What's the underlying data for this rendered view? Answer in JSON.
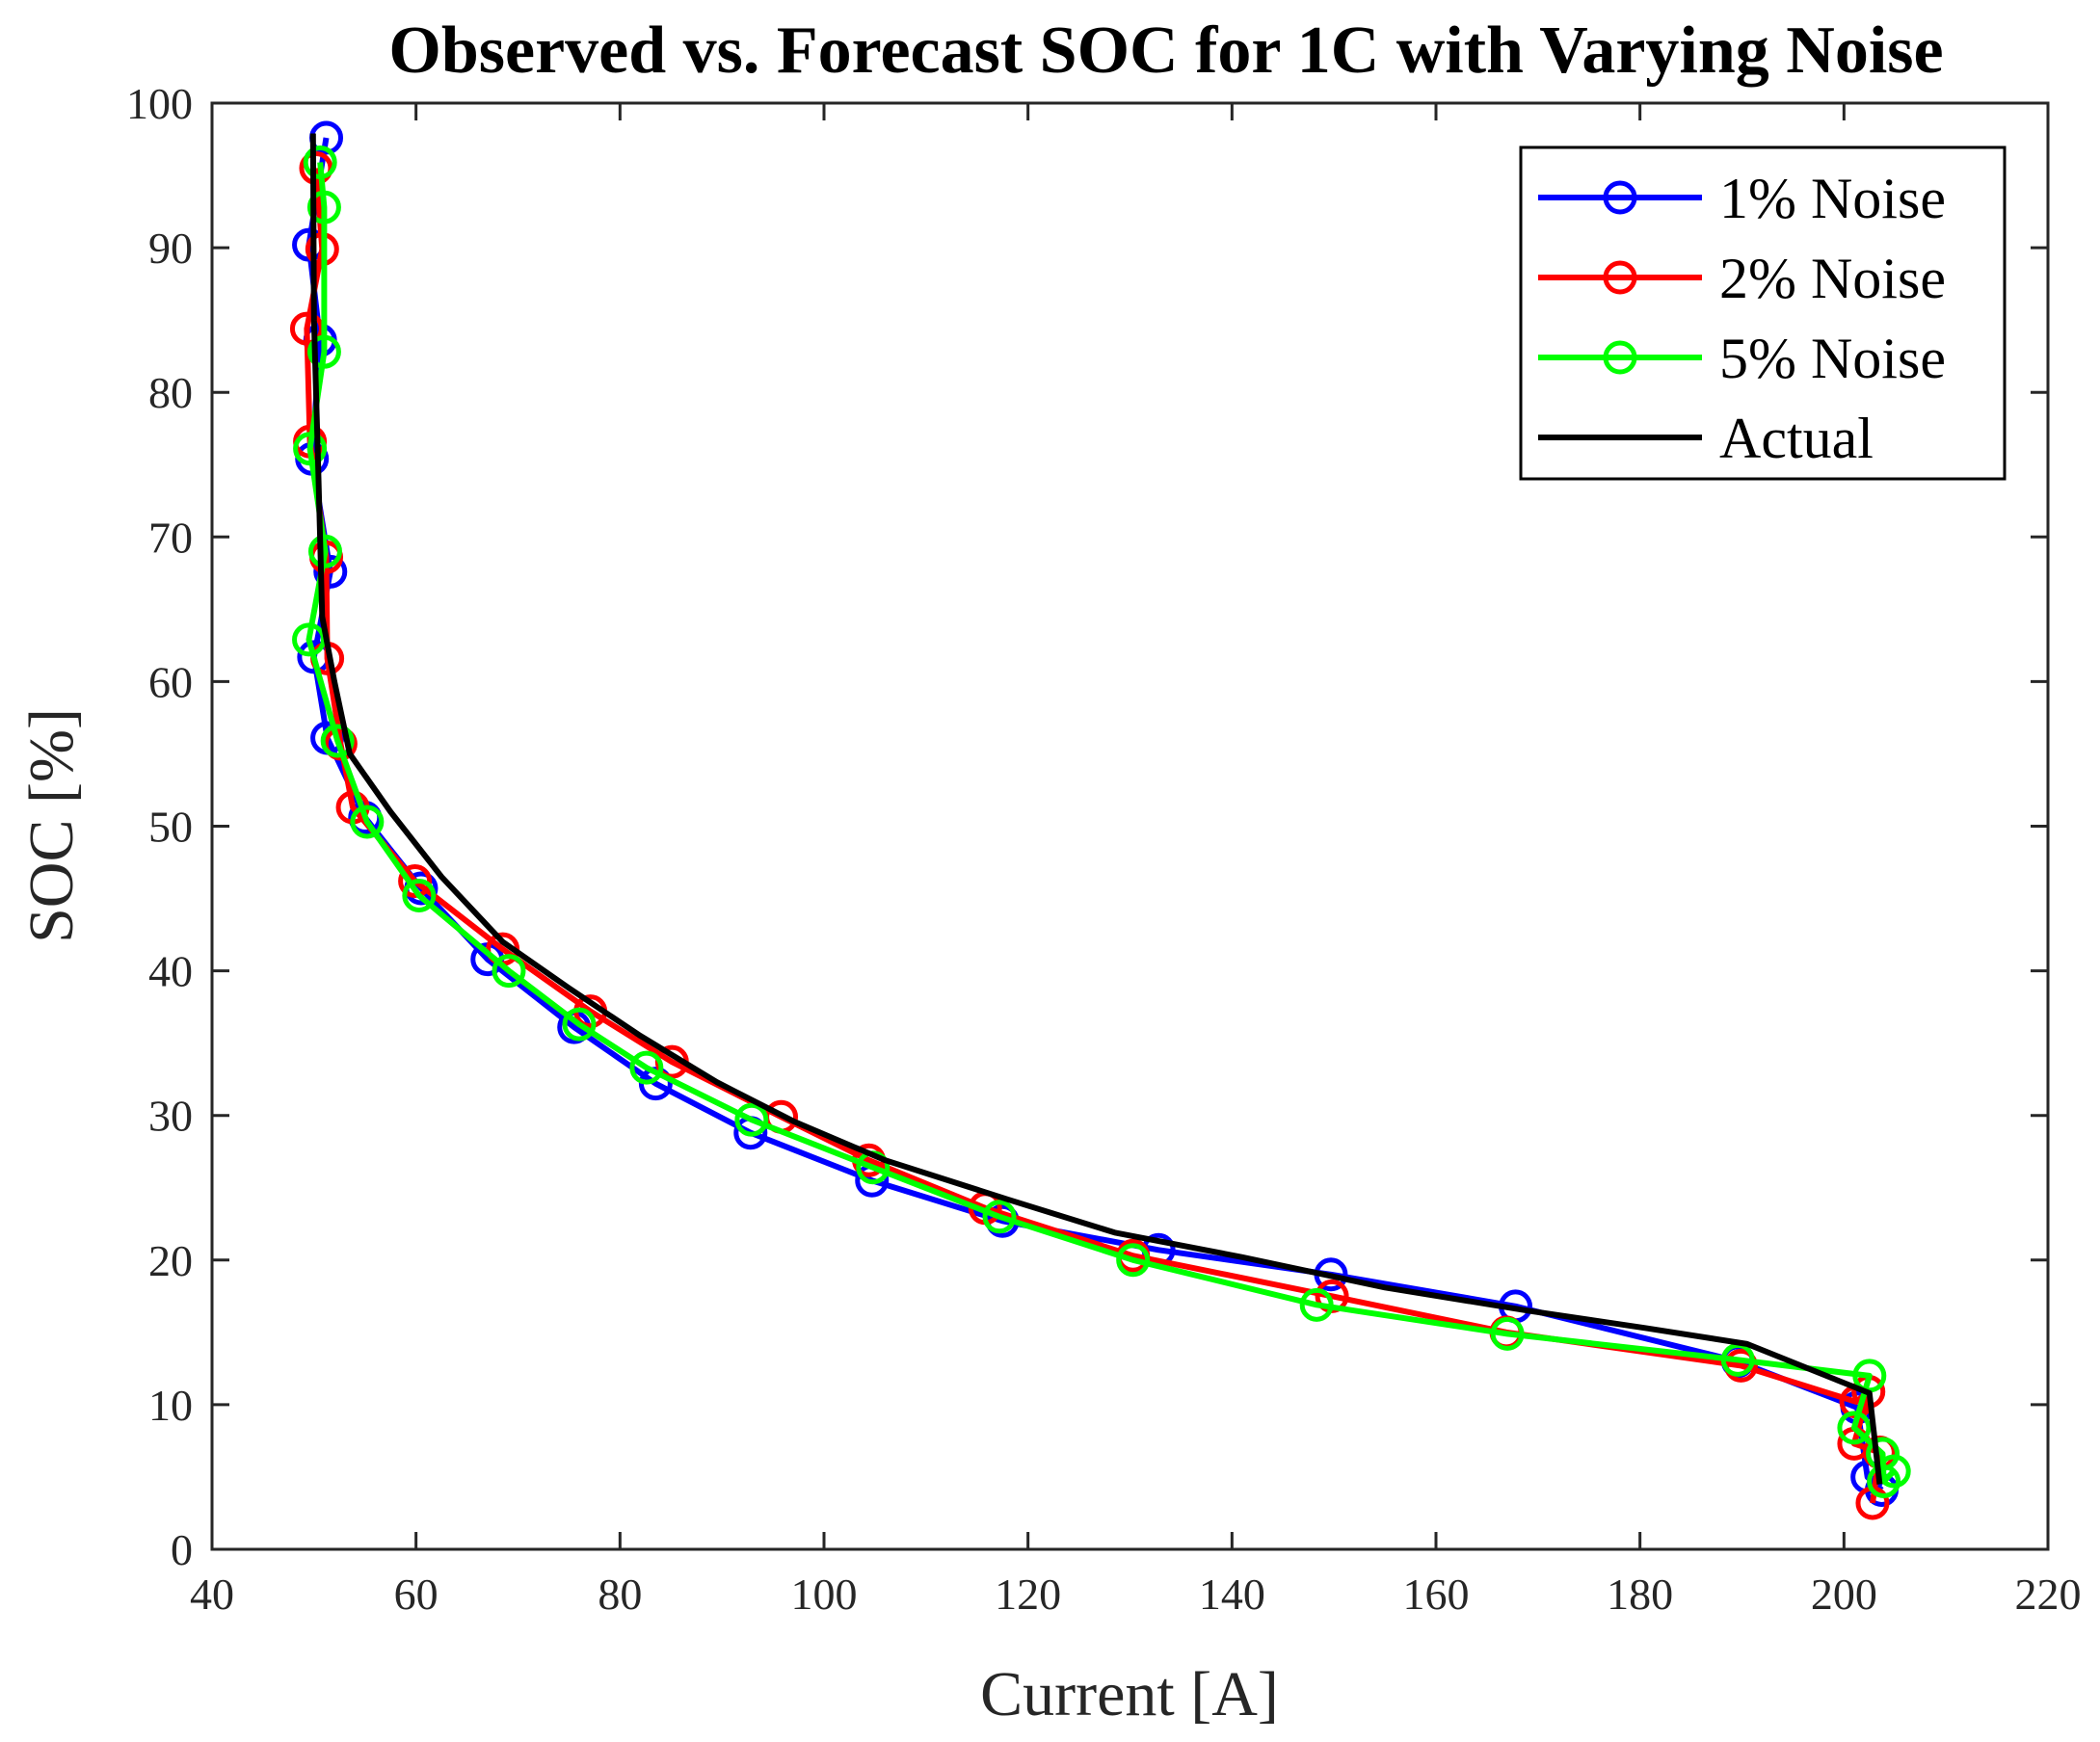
{
  "chart_data": {
    "type": "line",
    "title": "Observed vs. Forecast SOC for 1C with Varying Noise",
    "xlabel": "Current [A]",
    "ylabel": "SOC [%]",
    "xlim": [
      40,
      220
    ],
    "ylim": [
      0,
      100
    ],
    "xticks": [
      40,
      60,
      80,
      100,
      120,
      140,
      160,
      180,
      200,
      220
    ],
    "yticks": [
      0,
      10,
      20,
      30,
      40,
      50,
      60,
      70,
      80,
      90,
      100
    ],
    "legend_position": "top-right",
    "series": [
      {
        "name": "1% Noise",
        "color": "#0000ff",
        "marker": "circle",
        "points": [
          [
            51.2,
            97.6
          ],
          [
            49.5,
            90.2
          ],
          [
            50.6,
            83.6
          ],
          [
            49.8,
            75.4
          ],
          [
            51.6,
            67.6
          ],
          [
            50.0,
            61.7
          ],
          [
            51.3,
            56.1
          ],
          [
            55.0,
            50.6
          ],
          [
            60.5,
            45.7
          ],
          [
            67.0,
            40.8
          ],
          [
            75.5,
            36.1
          ],
          [
            83.5,
            32.2
          ],
          [
            92.8,
            28.8
          ],
          [
            104.7,
            25.5
          ],
          [
            117.5,
            22.7
          ],
          [
            132.8,
            20.7
          ],
          [
            149.7,
            19.0
          ],
          [
            167.8,
            16.8
          ],
          [
            189.6,
            13.0
          ],
          [
            201.3,
            9.8
          ],
          [
            202.3,
            5.0
          ],
          [
            203.7,
            4.1
          ]
        ]
      },
      {
        "name": "2% Noise",
        "color": "#ff0000",
        "marker": "circle",
        "points": [
          [
            50.2,
            95.5
          ],
          [
            50.8,
            89.9
          ],
          [
            49.3,
            84.4
          ],
          [
            49.6,
            76.6
          ],
          [
            51.2,
            68.6
          ],
          [
            51.3,
            61.6
          ],
          [
            52.6,
            55.7
          ],
          [
            53.8,
            51.3
          ],
          [
            59.9,
            46.2
          ],
          [
            68.5,
            41.5
          ],
          [
            77.1,
            37.2
          ],
          [
            85.1,
            33.7
          ],
          [
            95.8,
            29.9
          ],
          [
            104.4,
            26.9
          ],
          [
            115.8,
            23.6
          ],
          [
            130.3,
            20.3
          ],
          [
            149.8,
            17.5
          ],
          [
            166.9,
            15.0
          ],
          [
            189.9,
            12.7
          ],
          [
            201.2,
            10.2
          ],
          [
            202.4,
            10.9
          ],
          [
            201.0,
            7.3
          ],
          [
            203.5,
            6.7
          ],
          [
            202.8,
            3.2
          ]
        ]
      },
      {
        "name": "5% Noise",
        "color": "#00ff00",
        "marker": "circle",
        "points": [
          [
            50.6,
            95.9
          ],
          [
            51.0,
            92.8
          ],
          [
            51.0,
            82.8
          ],
          [
            49.6,
            76.1
          ],
          [
            51.1,
            69.0
          ],
          [
            49.5,
            62.9
          ],
          [
            52.3,
            55.9
          ],
          [
            55.2,
            50.3
          ],
          [
            60.3,
            45.2
          ],
          [
            69.1,
            40.0
          ],
          [
            76.0,
            36.3
          ],
          [
            82.6,
            33.3
          ],
          [
            92.9,
            29.7
          ],
          [
            104.8,
            26.4
          ],
          [
            117.2,
            23.0
          ],
          [
            130.3,
            20.0
          ],
          [
            148.3,
            16.9
          ],
          [
            167.0,
            14.9
          ],
          [
            189.6,
            13.1
          ],
          [
            202.5,
            12.0
          ],
          [
            201.0,
            8.4
          ],
          [
            203.8,
            6.6
          ],
          [
            203.9,
            4.7
          ],
          [
            204.9,
            5.4
          ]
        ]
      },
      {
        "name": "Actual",
        "color": "#000000",
        "marker": "none",
        "points": [
          [
            49.9,
            97.9
          ],
          [
            50.0,
            85.0
          ],
          [
            50.4,
            75.0
          ],
          [
            50.8,
            64.5
          ],
          [
            52.0,
            60.0
          ],
          [
            53.5,
            55.0
          ],
          [
            57.5,
            51.0
          ],
          [
            62.5,
            46.5
          ],
          [
            68.5,
            42.0
          ],
          [
            75.0,
            38.8
          ],
          [
            82.0,
            35.5
          ],
          [
            89.5,
            32.3
          ],
          [
            97.0,
            29.6
          ],
          [
            106.0,
            26.9
          ],
          [
            118.0,
            24.2
          ],
          [
            128.5,
            21.9
          ],
          [
            141.0,
            20.2
          ],
          [
            155.0,
            18.1
          ],
          [
            169.0,
            16.5
          ],
          [
            180.5,
            15.3
          ],
          [
            190.5,
            14.2
          ],
          [
            202.5,
            10.8
          ],
          [
            203.5,
            4.5
          ]
        ]
      }
    ]
  }
}
